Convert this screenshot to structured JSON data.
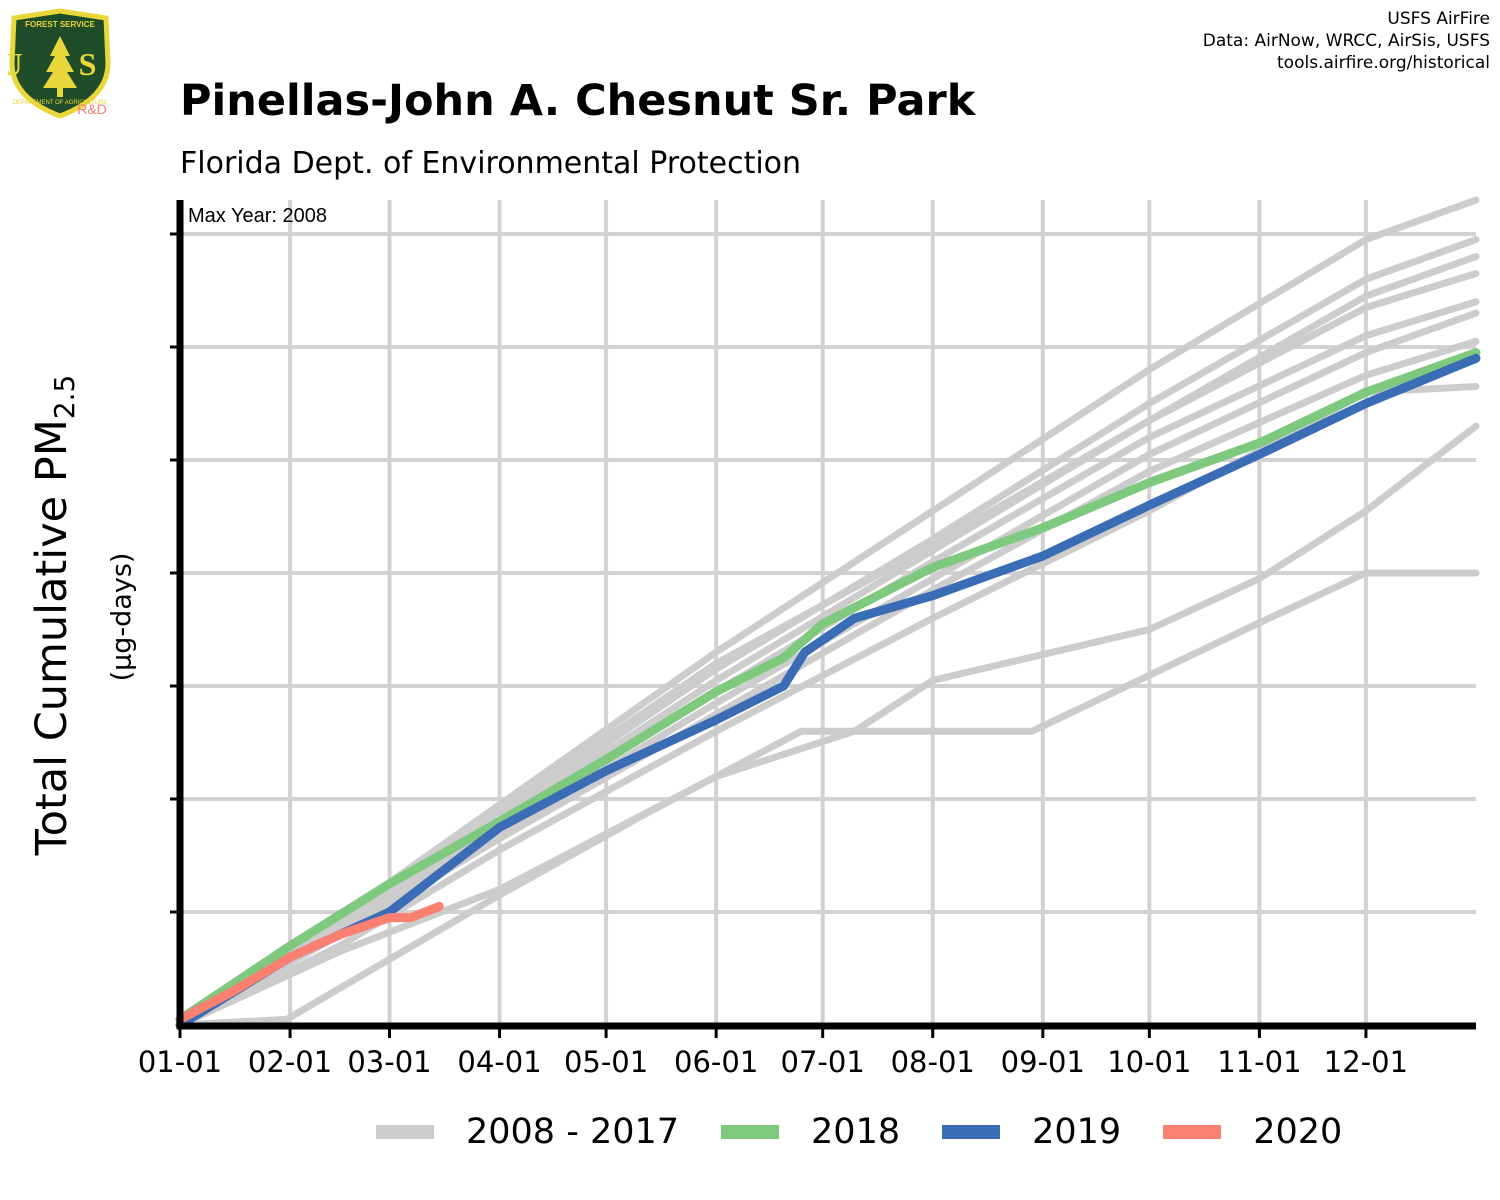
{
  "header": {
    "title": "Pinellas-John A. Chesnut Sr. Park",
    "subtitle": "Florida Dept. of Environmental Protection"
  },
  "credits": {
    "line1": "USFS AirFire",
    "line2": "Data: AirNow, WRCC, AirSis, USFS",
    "line3": "tools.airfire.org/historical"
  },
  "logo": {
    "top_text": "FOREST SERVICE",
    "letters": "U S",
    "bottom_text": "DEPARTMENT OF AGRICULTURE",
    "badge": "R&D",
    "colors": {
      "shield": "#1f4d2a",
      "trim": "#e8d63a",
      "badge": "#f08070"
    }
  },
  "axis": {
    "ylabel_main": "Total Cumulative PM",
    "ylabel_sub": "2.5",
    "yunits": "(µg-days)"
  },
  "legend": [
    {
      "label": "2008 - 2017",
      "color": "#cccccc"
    },
    {
      "label": "2018",
      "color": "#7fc97f"
    },
    {
      "label": "2019",
      "color": "#3a6db5"
    },
    {
      "label": "2020",
      "color": "#fa8072"
    }
  ],
  "chart_data": {
    "type": "line",
    "annotation": "Max Year: 2008",
    "x_tick_labels": [
      "01-01",
      "02-01",
      "03-01",
      "04-01",
      "05-01",
      "06-01",
      "07-01",
      "08-01",
      "09-01",
      "10-01",
      "11-01",
      "12-01"
    ],
    "x_tick_days": [
      0,
      31,
      59,
      90,
      120,
      151,
      181,
      212,
      243,
      273,
      304,
      334
    ],
    "xlim": [
      0,
      365
    ],
    "ylim": [
      0,
      7
    ],
    "y_ticks": [
      0,
      1,
      2,
      3,
      4,
      5,
      6,
      7
    ],
    "y_tick_labels_shown": false,
    "grid": true,
    "legend_position": "bottom",
    "series": [
      {
        "group": "2008 - 2017",
        "color": "#cccccc",
        "x": [
          0,
          45,
          90,
          151,
          212,
          273,
          334,
          365
        ],
        "y": [
          0,
          0.95,
          1.95,
          3.3,
          4.55,
          5.8,
          6.95,
          7.3
        ]
      },
      {
        "group": "2008 - 2017",
        "color": "#cccccc",
        "x": [
          0,
          45,
          90,
          151,
          212,
          273,
          334,
          365
        ],
        "y": [
          0,
          0.9,
          1.85,
          3.15,
          4.3,
          5.5,
          6.6,
          6.95
        ]
      },
      {
        "group": "2008 - 2017",
        "color": "#cccccc",
        "x": [
          0,
          45,
          90,
          151,
          212,
          273,
          334,
          365
        ],
        "y": [
          0,
          0.85,
          1.8,
          3.05,
          4.2,
          5.35,
          6.45,
          6.8
        ]
      },
      {
        "group": "2008 - 2017",
        "color": "#cccccc",
        "x": [
          0,
          45,
          90,
          151,
          212,
          273,
          334,
          365
        ],
        "y": [
          0,
          0.9,
          1.9,
          3.2,
          4.25,
          5.35,
          6.35,
          6.65
        ]
      },
      {
        "group": "2008 - 2017",
        "color": "#cccccc",
        "x": [
          0,
          45,
          90,
          151,
          212,
          273,
          334,
          365
        ],
        "y": [
          0,
          0.85,
          1.75,
          2.95,
          4.1,
          5.2,
          6.1,
          6.4
        ]
      },
      {
        "group": "2008 - 2017",
        "color": "#cccccc",
        "x": [
          0,
          45,
          90,
          151,
          212,
          273,
          334,
          365
        ],
        "y": [
          0,
          0.8,
          1.7,
          2.85,
          3.95,
          5.05,
          5.95,
          6.3
        ]
      },
      {
        "group": "2008 - 2017",
        "color": "#cccccc",
        "x": [
          0,
          45,
          90,
          151,
          212,
          273,
          334,
          365
        ],
        "y": [
          0,
          0.8,
          1.65,
          2.75,
          3.85,
          4.9,
          5.75,
          6.05
        ]
      },
      {
        "group": "2008 - 2017",
        "color": "#cccccc",
        "x": [
          0,
          45,
          90,
          151,
          212,
          273,
          334,
          365
        ],
        "y": [
          0,
          0.7,
          1.55,
          2.6,
          3.6,
          4.55,
          5.6,
          5.65
        ]
      },
      {
        "group": "2008 - 2017",
        "color": "#cccccc",
        "x": [
          0,
          30,
          60,
          90,
          130,
          175,
          190,
          240,
          300,
          334,
          352,
          365
        ],
        "y": [
          0,
          0.05,
          0.6,
          1.15,
          1.85,
          2.6,
          2.6,
          2.6,
          3.5,
          4.0,
          4.0,
          4.0
        ]
      },
      {
        "group": "2008 - 2017",
        "color": "#cccccc",
        "x": [
          0,
          45,
          90,
          151,
          190,
          212,
          273,
          304,
          334,
          365
        ],
        "y": [
          0,
          0.65,
          1.2,
          2.2,
          2.6,
          3.05,
          3.5,
          3.95,
          4.55,
          5.3
        ]
      },
      {
        "group": "2018",
        "color": "#7fc97f",
        "x": [
          0,
          31,
          59,
          90,
          120,
          151,
          170,
          181,
          212,
          243,
          273,
          304,
          334,
          365
        ],
        "y": [
          0.05,
          0.7,
          1.25,
          1.8,
          2.35,
          2.95,
          3.25,
          3.55,
          4.05,
          4.4,
          4.8,
          5.15,
          5.6,
          5.95
        ]
      },
      {
        "group": "2019",
        "color": "#3a6db5",
        "x": [
          0,
          31,
          59,
          90,
          120,
          151,
          170,
          176,
          190,
          212,
          243,
          273,
          304,
          334,
          365
        ],
        "y": [
          0,
          0.6,
          1.0,
          1.75,
          2.25,
          2.7,
          3.0,
          3.3,
          3.6,
          3.8,
          4.15,
          4.6,
          5.05,
          5.5,
          5.9
        ]
      },
      {
        "group": "2020",
        "color": "#fa8072",
        "x": [
          0,
          15,
          31,
          45,
          59,
          65,
          73
        ],
        "y": [
          0.05,
          0.3,
          0.6,
          0.8,
          0.95,
          0.95,
          1.05
        ]
      }
    ]
  }
}
